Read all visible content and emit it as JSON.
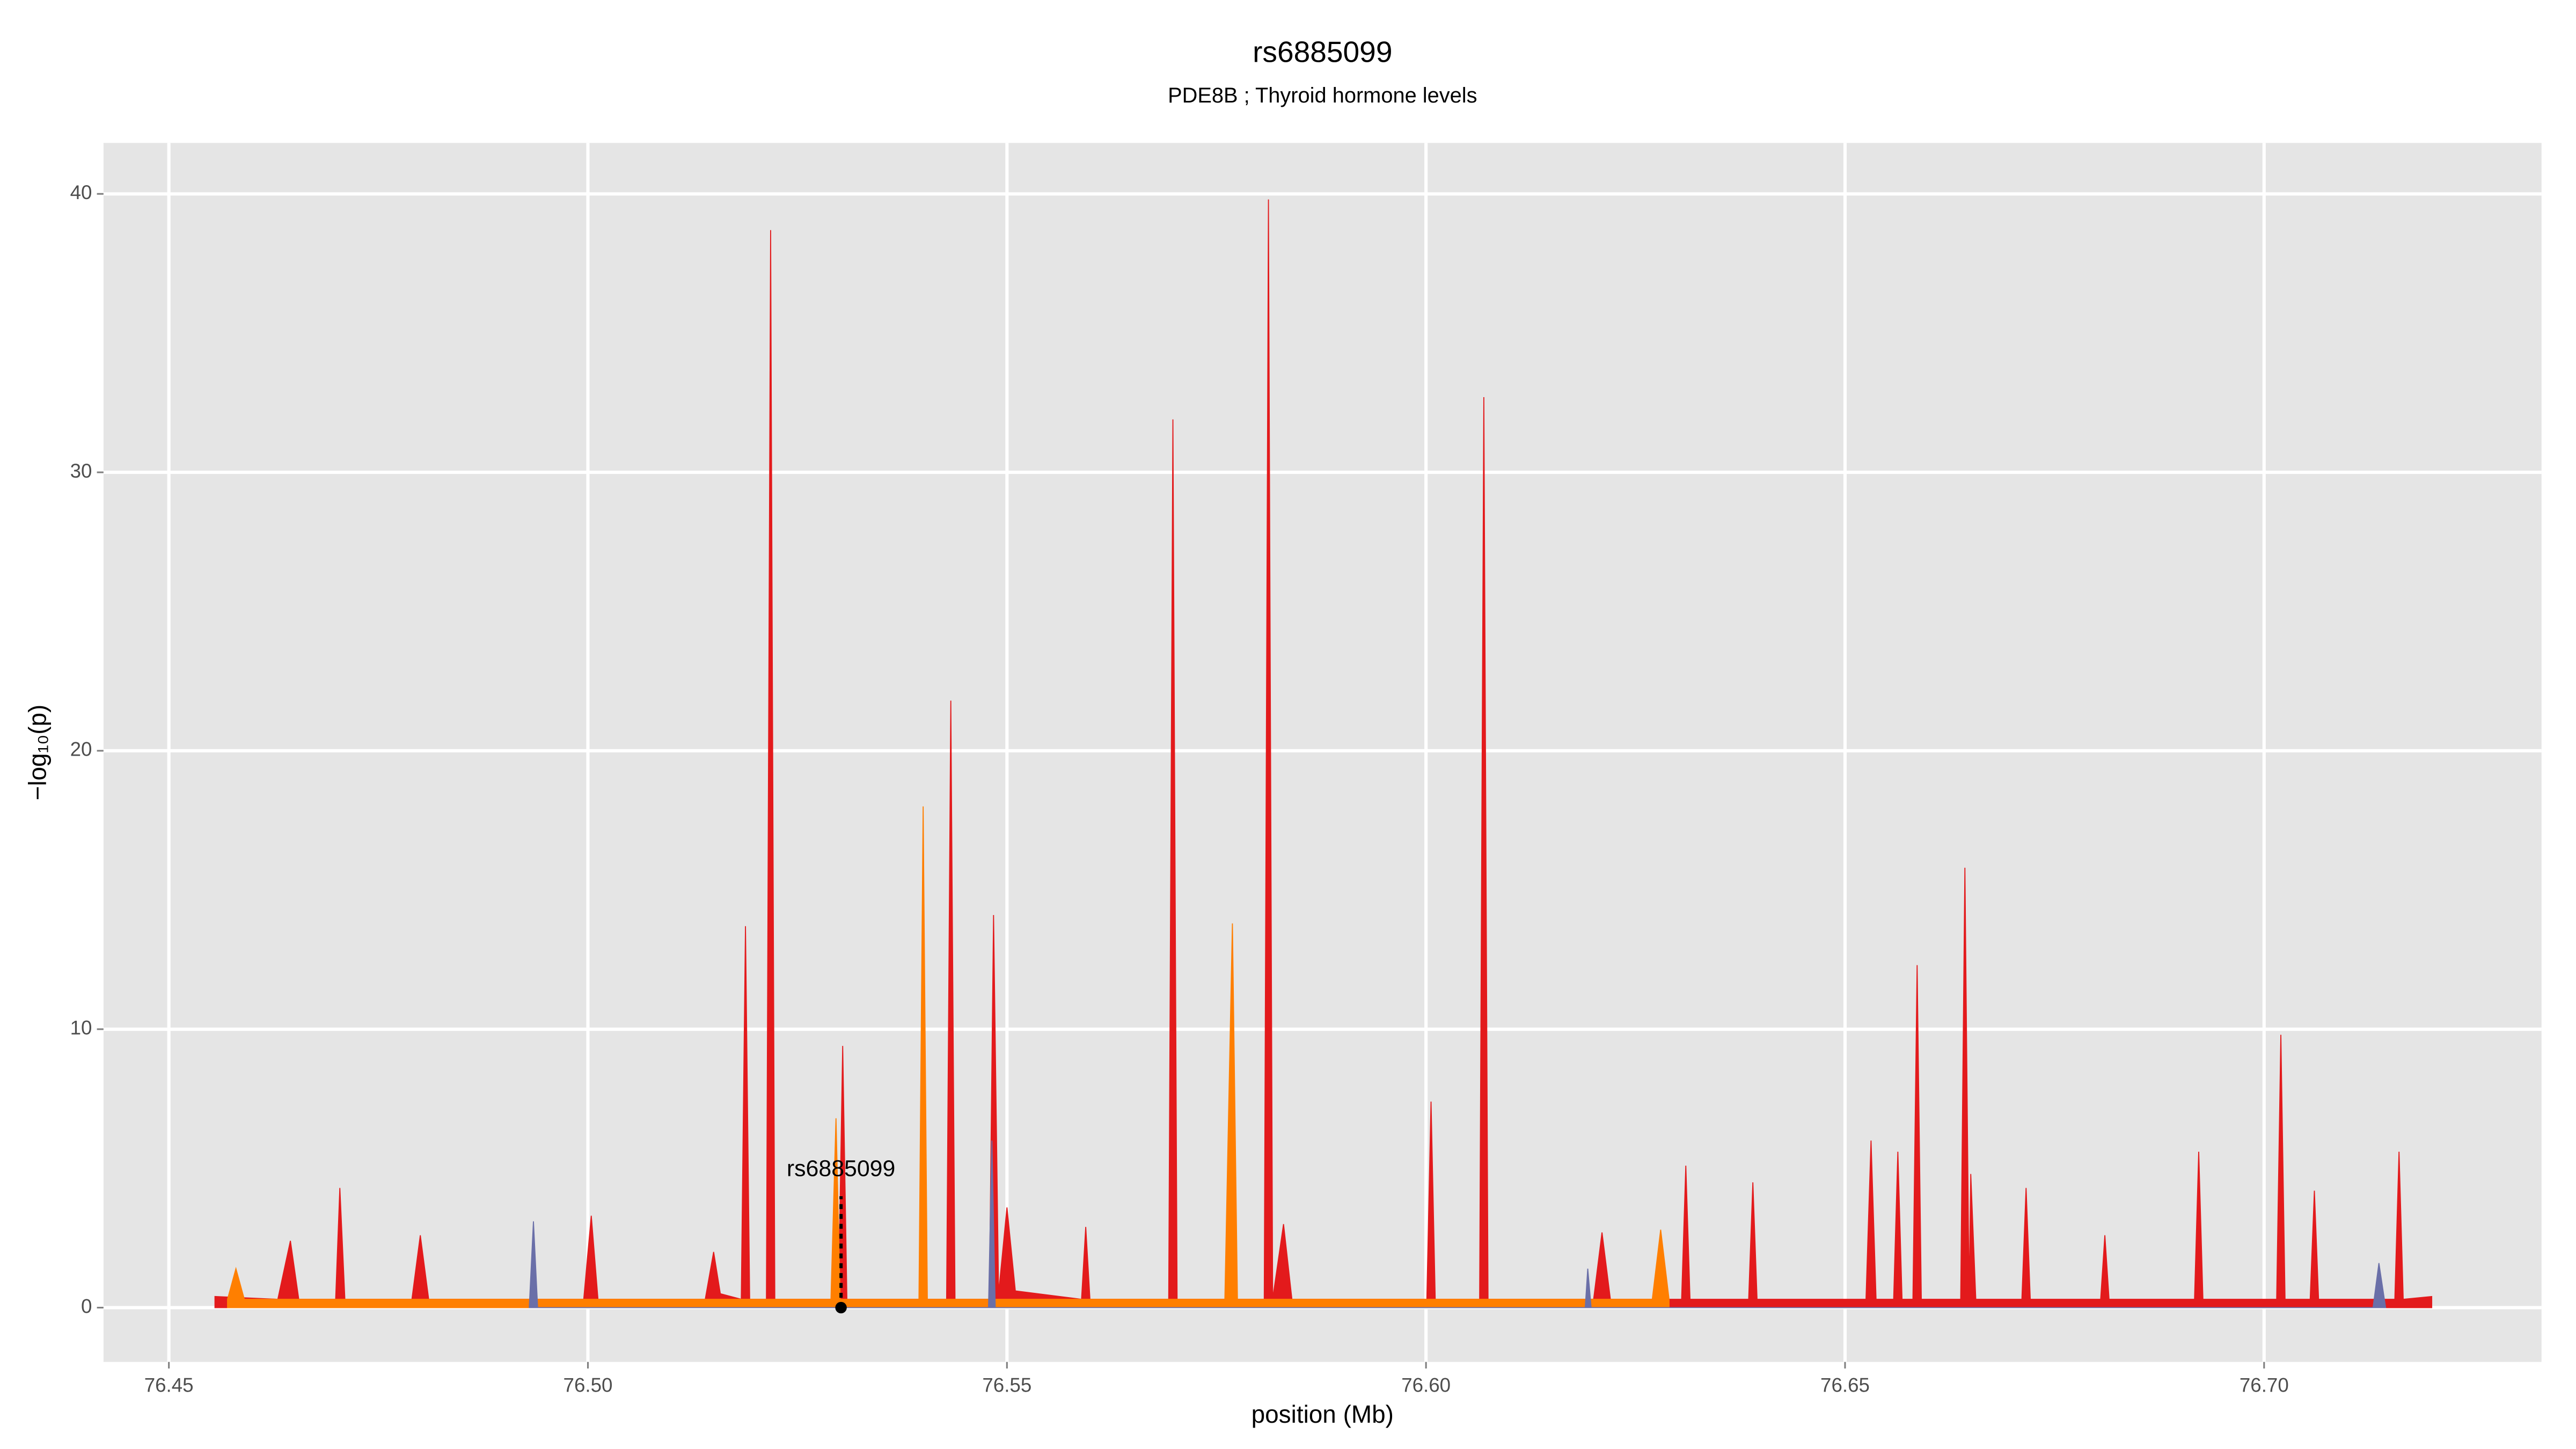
{
  "chart_data": {
    "type": "area",
    "title": "rs6885099",
    "subtitle": "PDE8B ; Thyroid hormone levels",
    "x_label": "position (Mb)",
    "y_label": "−log₁₀(p)",
    "xlim": [
      76.4422,
      76.7331
    ],
    "ylim": [
      -1.95,
      41.83
    ],
    "xticks": [
      {
        "value": 76.45,
        "label": "76.45"
      },
      {
        "value": 76.5,
        "label": "76.50"
      },
      {
        "value": 76.55,
        "label": "76.55"
      },
      {
        "value": 76.6,
        "label": "76.60"
      },
      {
        "value": 76.65,
        "label": "76.65"
      },
      {
        "value": 76.7,
        "label": "76.70"
      }
    ],
    "yticks": [
      0,
      10,
      20,
      30,
      40
    ],
    "grid": true,
    "series": [
      {
        "color": "#e31a1c",
        "x": [
          76.4555,
          76.463,
          76.4645,
          76.4655,
          76.4699,
          76.4704,
          76.471,
          76.479,
          76.48,
          76.481,
          76.4995,
          76.5004,
          76.5012,
          76.514,
          76.515,
          76.5158,
          76.5183,
          76.5188,
          76.5193,
          76.5213,
          76.5218,
          76.5223,
          76.5299,
          76.5304,
          76.5309,
          76.5428,
          76.5433,
          76.5438,
          76.5479,
          76.5484,
          76.549,
          76.55,
          76.551,
          76.5589,
          76.5594,
          76.5599,
          76.5693,
          76.5698,
          76.5703,
          76.5807,
          76.5812,
          76.5817,
          76.583,
          76.584,
          76.6001,
          76.6006,
          76.6011,
          76.6064,
          76.6069,
          76.6074,
          76.62,
          76.621,
          76.622,
          76.6305,
          76.631,
          76.6315,
          76.6385,
          76.639,
          76.6395,
          76.6525,
          76.6531,
          76.6537,
          76.6558,
          76.6563,
          76.6568,
          76.6581,
          76.6586,
          76.6591,
          76.6638,
          76.6643,
          76.6648,
          76.665,
          76.6656,
          76.6711,
          76.6716,
          76.6721,
          76.6805,
          76.681,
          76.6815,
          76.6917,
          76.6922,
          76.6927,
          76.7015,
          76.702,
          76.7025,
          76.7055,
          76.706,
          76.7065,
          76.7156,
          76.7161,
          76.7166,
          76.72
        ],
        "values": [
          0.4,
          0.3,
          2.4,
          0.3,
          0.3,
          4.3,
          0.3,
          0.3,
          2.6,
          0.3,
          0.3,
          3.3,
          0.3,
          0.3,
          2.0,
          0.5,
          0.3,
          13.7,
          0.3,
          0.3,
          38.7,
          0.3,
          0.3,
          9.4,
          0.3,
          0.3,
          21.8,
          0.3,
          0.3,
          14.1,
          0.5,
          3.6,
          0.6,
          0.3,
          2.9,
          0.3,
          0.3,
          31.9,
          0.3,
          0.3,
          39.8,
          0.3,
          3.0,
          0.3,
          0.3,
          7.4,
          0.3,
          0.3,
          32.7,
          0.3,
          0.3,
          2.7,
          0.3,
          0.3,
          5.1,
          0.3,
          0.3,
          4.5,
          0.3,
          0.3,
          6.0,
          0.3,
          0.3,
          5.6,
          0.3,
          0.3,
          12.3,
          0.3,
          0.3,
          15.8,
          0.3,
          4.8,
          0.3,
          0.3,
          4.3,
          0.3,
          0.3,
          2.6,
          0.3,
          0.3,
          5.6,
          0.3,
          0.3,
          9.8,
          0.3,
          0.3,
          4.2,
          0.3,
          0.3,
          5.6,
          0.3,
          0.4
        ]
      },
      {
        "color": "#ff7f00",
        "x": [
          76.457,
          76.458,
          76.459,
          76.529,
          76.5296,
          76.5301,
          76.5395,
          76.54,
          76.5405,
          76.576,
          76.5769,
          76.5775,
          76.627,
          76.628,
          76.629
        ],
        "values": [
          0.3,
          1.4,
          0.3,
          0.3,
          6.8,
          0.3,
          0.3,
          18.0,
          0.3,
          0.3,
          13.8,
          0.3,
          0.3,
          2.8,
          0.3
        ]
      },
      {
        "color": "#6a6fa8",
        "x": [
          76.493,
          76.4935,
          76.494,
          76.5478,
          76.5482,
          76.5486,
          76.619,
          76.6193,
          76.6197,
          76.713,
          76.7137,
          76.7145
        ],
        "values": [
          0,
          3.1,
          0,
          0,
          6.0,
          0,
          0,
          1.4,
          0,
          0,
          1.6,
          0
        ]
      }
    ],
    "annotation": {
      "label": "rs6885099",
      "x": 76.5302,
      "y": 4.0
    }
  }
}
